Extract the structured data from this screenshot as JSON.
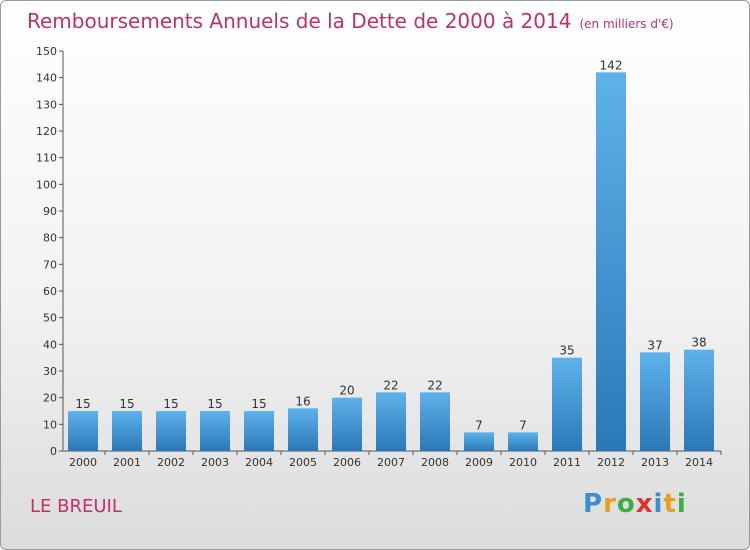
{
  "header": {
    "title": "Remboursements Annuels de la Dette de 2000 à 2014",
    "unit": "(en milliers d'€)"
  },
  "footer": {
    "commune": "LE BREUIL",
    "logo": [
      "P",
      "r",
      "o",
      "x",
      "i",
      "t",
      "i"
    ],
    "logo_colors": [
      "#3a8fd0",
      "#e8a020",
      "#3ab040",
      "#e03030",
      "#3a8fd0",
      "#e8a020",
      "#3ab040"
    ]
  },
  "chart_data": {
    "type": "bar",
    "title": "Remboursements Annuels de la Dette de 2000 à 2014",
    "categories": [
      "2000",
      "2001",
      "2002",
      "2003",
      "2004",
      "2005",
      "2006",
      "2007",
      "2008",
      "2009",
      "2010",
      "2011",
      "2012",
      "2013",
      "2014"
    ],
    "values": [
      15,
      15,
      15,
      15,
      15,
      16,
      20,
      22,
      22,
      7,
      7,
      35,
      142,
      37,
      38
    ],
    "ylim": [
      0,
      150
    ],
    "yticks": [
      0,
      10,
      20,
      30,
      40,
      50,
      60,
      70,
      80,
      90,
      100,
      110,
      120,
      130,
      140,
      150
    ],
    "grid": false,
    "colors": {
      "bar_light": "#5eb2ea",
      "bar_dark": "#2a78b8",
      "axis": "#555555",
      "title": "#c0306a"
    }
  }
}
